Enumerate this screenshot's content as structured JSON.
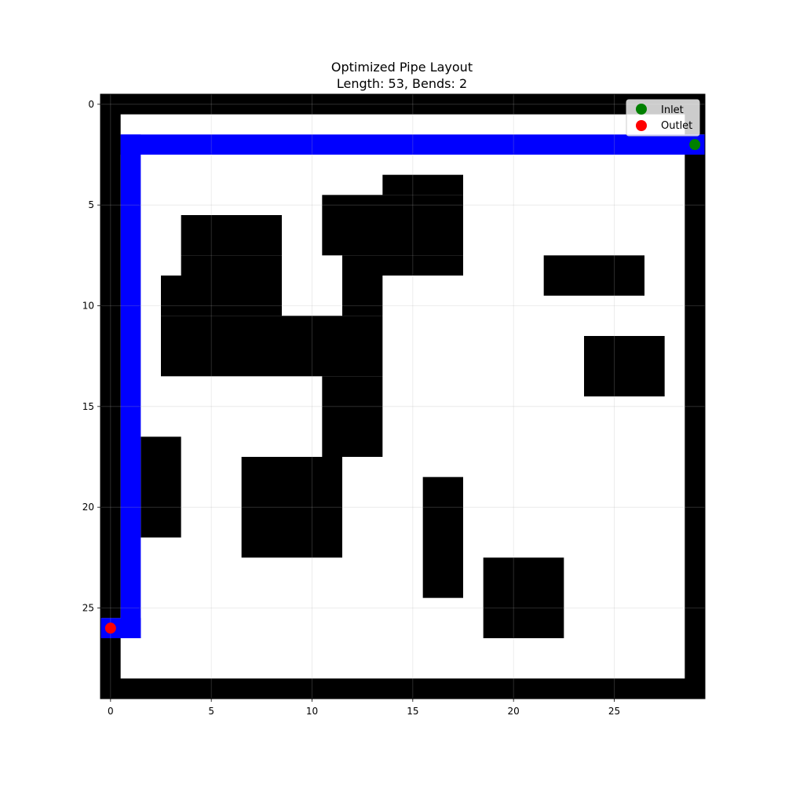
{
  "chart_data": {
    "type": "heatmap",
    "title": "Optimized Pipe Layout",
    "subtitle": "Length: 53, Bends: 2",
    "xlabel": "",
    "ylabel": "",
    "grid_size": 30,
    "xlim": [
      -0.5,
      29.5
    ],
    "ylim": [
      29.5,
      -0.5
    ],
    "x_ticks": [
      0,
      5,
      10,
      15,
      20,
      25
    ],
    "y_ticks": [
      0,
      5,
      10,
      15,
      20,
      25
    ],
    "grid": true,
    "legend_position": "top-right",
    "colors": {
      "obstacle": "#000000",
      "free": "#ffffff",
      "pipe": "#0000ff",
      "inlet": "#008000",
      "outlet": "#ff0000"
    },
    "obstacles": [
      {
        "cols": [
          0,
          29
        ],
        "rows": [
          0,
          0
        ]
      },
      {
        "cols": [
          0,
          29
        ],
        "rows": [
          29,
          29
        ]
      },
      {
        "cols": [
          0,
          0
        ],
        "rows": [
          0,
          25
        ]
      },
      {
        "cols": [
          0,
          0
        ],
        "rows": [
          27,
          29
        ]
      },
      {
        "cols": [
          29,
          29
        ],
        "rows": [
          0,
          1
        ]
      },
      {
        "cols": [
          29,
          29
        ],
        "rows": [
          3,
          29
        ]
      },
      {
        "cols": [
          14,
          17
        ],
        "rows": [
          4,
          4
        ]
      },
      {
        "cols": [
          11,
          17
        ],
        "rows": [
          5,
          5
        ]
      },
      {
        "cols": [
          4,
          8
        ],
        "rows": [
          6,
          7
        ]
      },
      {
        "cols": [
          11,
          17
        ],
        "rows": [
          6,
          7
        ]
      },
      {
        "cols": [
          4,
          8
        ],
        "rows": [
          8,
          8
        ]
      },
      {
        "cols": [
          12,
          17
        ],
        "rows": [
          8,
          8
        ]
      },
      {
        "cols": [
          3,
          8
        ],
        "rows": [
          9,
          10
        ]
      },
      {
        "cols": [
          12,
          13
        ],
        "rows": [
          9,
          10
        ]
      },
      {
        "cols": [
          3,
          13
        ],
        "rows": [
          11,
          13
        ]
      },
      {
        "cols": [
          11,
          13
        ],
        "rows": [
          14,
          17
        ]
      },
      {
        "cols": [
          22,
          26
        ],
        "rows": [
          8,
          9
        ]
      },
      {
        "cols": [
          24,
          27
        ],
        "rows": [
          12,
          14
        ]
      },
      {
        "cols": [
          2,
          3
        ],
        "rows": [
          17,
          21
        ]
      },
      {
        "cols": [
          7,
          11
        ],
        "rows": [
          18,
          22
        ]
      },
      {
        "cols": [
          16,
          17
        ],
        "rows": [
          19,
          24
        ]
      },
      {
        "cols": [
          19,
          22
        ],
        "rows": [
          23,
          26
        ]
      }
    ],
    "pipe_path": [
      {
        "x": 29,
        "y": 2
      },
      {
        "x": 1,
        "y": 2
      },
      {
        "x": 1,
        "y": 26
      },
      {
        "x": 0,
        "y": 26
      }
    ],
    "inlet": {
      "x": 29,
      "y": 2
    },
    "outlet": {
      "x": 0,
      "y": 26
    },
    "legend": [
      {
        "label": "Inlet",
        "color": "#008000"
      },
      {
        "label": "Outlet",
        "color": "#ff0000"
      }
    ]
  }
}
